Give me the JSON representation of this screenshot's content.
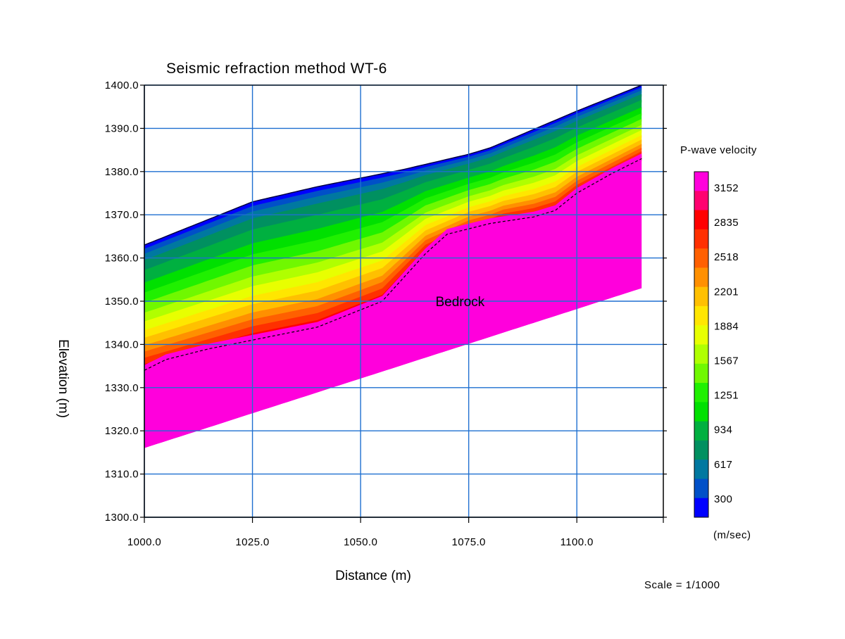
{
  "chart_data": {
    "type": "heatmap",
    "title": "Seismic refraction method WT-6",
    "xlabel": "Distance (m)",
    "ylabel": "Elevation (m)",
    "xlim": [
      1000,
      1120
    ],
    "ylim": [
      1300,
      1400
    ],
    "x_ticks": [
      1000,
      1025,
      1050,
      1075,
      1100
    ],
    "x_tick_labels": [
      "1000.0",
      "1025.0",
      "1050.0",
      "1075.0",
      "1100.0"
    ],
    "y_ticks": [
      1300,
      1310,
      1320,
      1330,
      1340,
      1350,
      1360,
      1370,
      1380,
      1390,
      1400
    ],
    "y_tick_labels": [
      "1300.0",
      "1310.0",
      "1320.0",
      "1330.0",
      "1340.0",
      "1350.0",
      "1360.0",
      "1370.0",
      "1380.0",
      "1390.0",
      "1400.0"
    ],
    "grid": true,
    "surface_profile": {
      "x": [
        1000,
        1010,
        1025,
        1040,
        1060,
        1075,
        1080,
        1100,
        1115
      ],
      "y": [
        1363,
        1367,
        1373,
        1376.5,
        1380.5,
        1384,
        1385.5,
        1394,
        1400
      ]
    },
    "bedrock_boundary": {
      "x": [
        1000,
        1005,
        1015,
        1025,
        1040,
        1055,
        1065,
        1070,
        1080,
        1090,
        1095,
        1100,
        1108,
        1115
      ],
      "y": [
        1334,
        1336.5,
        1339,
        1341,
        1344,
        1350,
        1361,
        1365.5,
        1368,
        1369.5,
        1371,
        1375,
        1379.5,
        1383
      ]
    },
    "model_bottom": {
      "x": [
        1000,
        1115
      ],
      "y": [
        1316,
        1353
      ]
    },
    "velocity_gradient_thickness": {
      "x": [
        1000,
        1025,
        1045,
        1060,
        1075,
        1100,
        1115
      ],
      "y": [
        29,
        32,
        30,
        22,
        18,
        19,
        17
      ]
    },
    "annotations": [
      {
        "text": "Bedrock",
        "x": 1073,
        "y": 1350
      }
    ],
    "colorbar": {
      "title": "P-wave velocity",
      "units": "(m/sec)",
      "min": 300,
      "max": 3152,
      "tick_labels": [
        "3152",
        "2835",
        "2518",
        "2201",
        "1884",
        "1567",
        "1251",
        "934",
        "617",
        "300"
      ],
      "colors": [
        "#0000ff",
        "#0050c8",
        "#0078a0",
        "#009060",
        "#00b040",
        "#00e000",
        "#20f000",
        "#70f800",
        "#b0ff00",
        "#e8ff00",
        "#ffe600",
        "#ffc000",
        "#ff9000",
        "#ff6000",
        "#ff3000",
        "#ff0000",
        "#ff0070",
        "#ff00dc"
      ]
    },
    "scale_text": "Scale = 1/1000"
  }
}
